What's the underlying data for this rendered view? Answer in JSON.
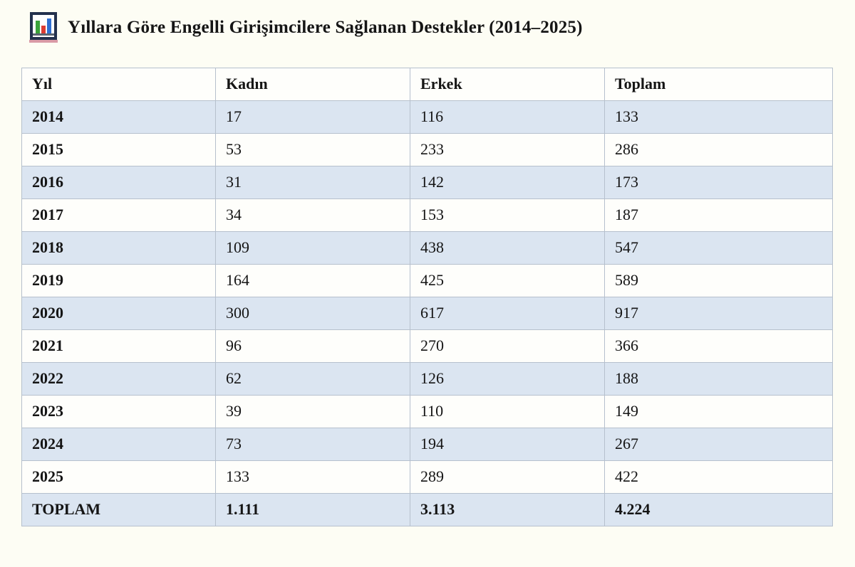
{
  "title": {
    "icon": "bar-chart-icon",
    "text": "Yıllara Göre Engelli Girişimcilere Sağlanan Destekler (2014–2025)"
  },
  "table": {
    "headers": [
      "Yıl",
      "Kadın",
      "Erkek",
      "Toplam"
    ],
    "rows": [
      [
        "2014",
        "17",
        "116",
        "133"
      ],
      [
        "2015",
        "53",
        "233",
        "286"
      ],
      [
        "2016",
        "31",
        "142",
        "173"
      ],
      [
        "2017",
        "34",
        "153",
        "187"
      ],
      [
        "2018",
        "109",
        "438",
        "547"
      ],
      [
        "2019",
        "164",
        "425",
        "589"
      ],
      [
        "2020",
        "300",
        "617",
        "917"
      ],
      [
        "2021",
        "96",
        "270",
        "366"
      ],
      [
        "2022",
        "62",
        "126",
        "188"
      ],
      [
        "2023",
        "39",
        "110",
        "149"
      ],
      [
        "2024",
        "73",
        "194",
        "267"
      ],
      [
        "2025",
        "133",
        "289",
        "422"
      ]
    ],
    "total_row": [
      "TOPLAM",
      "1.111",
      "3.113",
      "4.224"
    ],
    "stripe_color": "#dbe5f1",
    "border_color": "#b6c0cd"
  },
  "chart_data": {
    "type": "table",
    "title": "Yıllara Göre Engelli Girişimcilere Sağlanan Destekler (2014–2025)",
    "columns": [
      "Yıl",
      "Kadın",
      "Erkek",
      "Toplam"
    ],
    "categories": [
      "2014",
      "2015",
      "2016",
      "2017",
      "2018",
      "2019",
      "2020",
      "2021",
      "2022",
      "2023",
      "2024",
      "2025"
    ],
    "series": [
      {
        "name": "Kadın",
        "values": [
          17,
          53,
          31,
          34,
          109,
          164,
          300,
          96,
          62,
          39,
          73,
          133
        ]
      },
      {
        "name": "Erkek",
        "values": [
          116,
          233,
          142,
          153,
          438,
          425,
          617,
          270,
          126,
          110,
          194,
          289
        ]
      },
      {
        "name": "Toplam",
        "values": [
          133,
          286,
          173,
          187,
          547,
          589,
          917,
          366,
          188,
          149,
          267,
          422
        ]
      }
    ],
    "totals": {
      "Kadın": 1111,
      "Erkek": 3113,
      "Toplam": 4224
    },
    "totals_display": [
      "1.111",
      "3.113",
      "4.224"
    ],
    "layout": "striped-table, alternating light-blue rows, bold first column and total row"
  },
  "icon_colors": {
    "frame": "#23314d",
    "bar_green": "#3ba33a",
    "bar_red": "#dd3c32",
    "bar_blue": "#2f6fd2",
    "base_pink": "#d99aa6"
  }
}
